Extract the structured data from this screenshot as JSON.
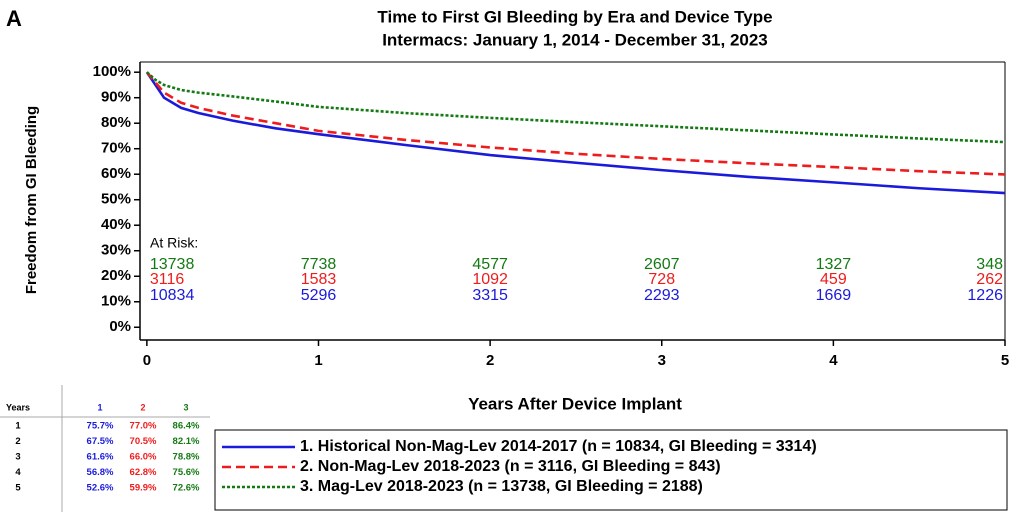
{
  "panel_label": "A",
  "chart_data": {
    "type": "line",
    "title": "Time to First GI Bleeding by Era and Device Type",
    "subtitle": "Intermacs: January 1, 2014 - December 31, 2023",
    "x_label": "Years After Device Implant",
    "y_label": "Freedom from GI Bleeding",
    "x": [
      0,
      0.05,
      0.1,
      0.2,
      0.3,
      0.5,
      0.75,
      1,
      1.5,
      2,
      2.5,
      3,
      3.5,
      4,
      4.5,
      5
    ],
    "series": [
      {
        "name": "1. Historical Non-Mag-Lev 2014-2017 (n = 10834, GI Bleeding = 3314)",
        "color": "#1a1adb",
        "style": "solid",
        "values": [
          100,
          95,
          90,
          86,
          84,
          81,
          78,
          75.7,
          71.5,
          67.5,
          64.5,
          61.6,
          59,
          56.8,
          54.5,
          52.6
        ],
        "at_risk": [
          10834,
          5296,
          3315,
          2293,
          1669,
          1226
        ]
      },
      {
        "name": "2. Non-Mag-Lev 2018-2023 (n = 3116, GI Bleeding = 843)",
        "color": "#ee1c1c",
        "style": "dashed",
        "values": [
          100,
          96,
          92,
          88,
          86,
          83,
          80,
          77,
          73.5,
          70.5,
          68,
          66,
          64.3,
          62.8,
          61.2,
          59.9
        ],
        "at_risk": [
          3116,
          1583,
          1092,
          728,
          459,
          262
        ]
      },
      {
        "name": "3. Mag-Lev 2018-2023 (n = 13738, GI Bleeding = 2188)",
        "color": "#137a13",
        "style": "dotted",
        "values": [
          100,
          97,
          95,
          93,
          92,
          90.5,
          88.5,
          86.4,
          84,
          82.1,
          80.4,
          78.8,
          77.2,
          75.6,
          74,
          72.6
        ],
        "at_risk": [
          13738,
          7738,
          4577,
          2607,
          1327,
          348
        ]
      }
    ],
    "at_risk_label": "At Risk:",
    "xlim": [
      -0.04,
      5
    ],
    "xticks": [
      0,
      1,
      2,
      3,
      4,
      5
    ],
    "ylim": [
      -5,
      104
    ],
    "yticks": [
      {
        "value": 0,
        "label": "0%"
      },
      {
        "value": 10,
        "label": "10%"
      },
      {
        "value": 20,
        "label": "20%"
      },
      {
        "value": 30,
        "label": "30%"
      },
      {
        "value": 40,
        "label": "40%"
      },
      {
        "value": 50,
        "label": "50%"
      },
      {
        "value": 60,
        "label": "60%"
      },
      {
        "value": 70,
        "label": "70%"
      },
      {
        "value": 80,
        "label": "80%"
      },
      {
        "value": 90,
        "label": "90%"
      },
      {
        "value": 100,
        "label": "100%"
      }
    ]
  },
  "survival_table": {
    "header": [
      "Years",
      "1",
      "2",
      "3"
    ],
    "rows": [
      [
        "1",
        "75.7%",
        "77.0%",
        "86.4%"
      ],
      [
        "2",
        "67.5%",
        "70.5%",
        "82.1%"
      ],
      [
        "3",
        "61.6%",
        "66.0%",
        "78.8%"
      ],
      [
        "4",
        "56.8%",
        "62.8%",
        "75.6%"
      ],
      [
        "5",
        "52.6%",
        "59.9%",
        "72.6%"
      ]
    ]
  }
}
